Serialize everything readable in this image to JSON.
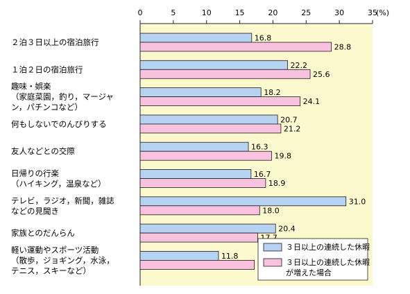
{
  "chart_data": {
    "type": "bar",
    "orientation": "horizontal",
    "xlim": [
      0,
      35
    ],
    "ticks": [
      "0",
      "5",
      "10",
      "15",
      "20",
      "25",
      "30",
      "35"
    ],
    "unit": "(%)",
    "categories": [
      [
        "２泊３日以上の宿泊旅行"
      ],
      [
        "１泊２日の宿泊旅行"
      ],
      [
        "趣味・娯楽",
        "（家庭菜園，釣り，マージャ",
        "ン，パチンコなど）"
      ],
      [
        "何もしないでのんびりする"
      ],
      [
        "友人などとの交際"
      ],
      [
        "日帰りの行楽",
        "（ハイキング，温泉など）"
      ],
      [
        "テレビ，ラジオ，新聞，雑誌",
        "などの見聞き"
      ],
      [
        "家族とのだんらん"
      ],
      [
        "軽い運動やスポーツ活動",
        "（散歩，ジョギング，水泳，",
        "テニス，スキーなど）"
      ]
    ],
    "series": [
      {
        "name": "３日以上の連続した休暇",
        "values": [
          16.8,
          22.2,
          18.2,
          20.7,
          16.3,
          16.7,
          31.0,
          20.4,
          11.8
        ],
        "labels": [
          "16.8",
          "22.2",
          "18.2",
          "20.7",
          "16.3",
          "16.7",
          "31.0",
          "20.4",
          "11.8"
        ]
      },
      {
        "name": "３日以上の連続した休暇が増えた場合",
        "name_lines": [
          "３日以上の連続した休暇",
          "が増えた場合"
        ],
        "values": [
          28.8,
          25.6,
          24.1,
          21.2,
          19.8,
          18.9,
          18.0,
          17.7,
          17.2
        ],
        "labels": [
          "28.8",
          "25.6",
          "24.1",
          "21.2",
          "19.8",
          "18.9",
          "18.0",
          "17.7",
          "17.2"
        ]
      }
    ],
    "legend_position": "bottom-right",
    "colors": {
      "plot_background": "#fdf9cf",
      "series1_fill": "#b6d3f2",
      "series2_fill": "#f9c2de",
      "bar_stroke": "#1a1a1a"
    }
  }
}
